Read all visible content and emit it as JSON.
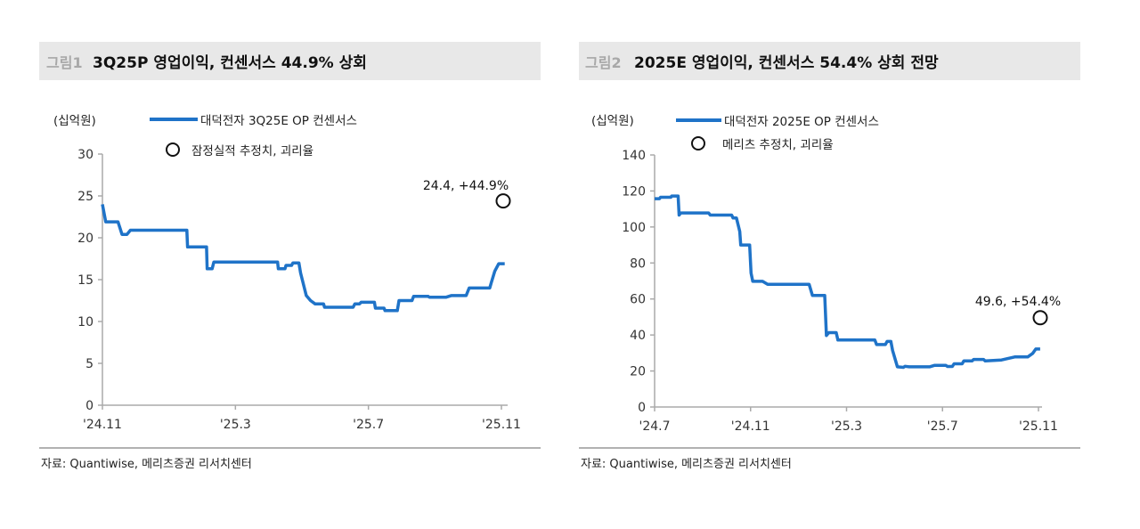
{
  "figures": [
    {
      "number": "그림1",
      "title": "3Q25P 영업이익, 컨센서스 44.9% 상회",
      "source": "자료: Quantiwise, 메리츠증권 리서치센터"
    },
    {
      "number": "그림2",
      "title": "2025E 영업이익, 컨센서스 54.4% 상회 전망",
      "source": "자료: Quantiwise, 메리츠증권 리서치센터"
    }
  ],
  "colors": {
    "line": "#1f73c8",
    "title_bg": "#e8e8e8",
    "axis": "#aaaaaa"
  },
  "chart_data": [
    {
      "type": "line",
      "title": "3Q25P 영업이익, 컨센서스 44.9% 상회",
      "ylabel": "(십억원)",
      "xlabel": "",
      "ylim": [
        0,
        30
      ],
      "yticks": [
        0,
        5,
        10,
        15,
        20,
        25,
        30
      ],
      "x_unit": "months since '24.11",
      "xlim": [
        0,
        12
      ],
      "xticks": [
        {
          "x": 0,
          "label": "'24.11"
        },
        {
          "x": 4,
          "label": "'25.3"
        },
        {
          "x": 8,
          "label": "'25.7"
        },
        {
          "x": 12,
          "label": "'25.11"
        }
      ],
      "series": [
        {
          "name": "대덕전자 3Q25E OP 컨센서스",
          "x": [
            0,
            0.1,
            0.47,
            0.59,
            0.74,
            0.84,
            2.54,
            2.56,
            3.13,
            3.15,
            3.3,
            3.35,
            5.27,
            5.29,
            5.49,
            5.52,
            5.69,
            5.73,
            5.91,
            5.96,
            6.13,
            6.26,
            6.4,
            6.65,
            6.68,
            7.54,
            7.59,
            7.73,
            7.78,
            8.18,
            8.21,
            8.47,
            8.5,
            8.87,
            8.92,
            9.31,
            9.36,
            9.8,
            9.83,
            10.34,
            10.49,
            10.94,
            11.03,
            11.65,
            11.7,
            11.8,
            11.92,
            12.1
          ],
          "values": [
            24.0,
            21.9,
            21.9,
            20.4,
            20.4,
            20.9,
            20.9,
            18.9,
            18.9,
            16.3,
            16.3,
            17.1,
            17.1,
            16.3,
            16.3,
            16.7,
            16.7,
            17.0,
            17.0,
            15.8,
            13.1,
            12.5,
            12.1,
            12.1,
            11.7,
            11.7,
            12.1,
            12.1,
            12.3,
            12.3,
            11.6,
            11.6,
            11.3,
            11.3,
            12.5,
            12.5,
            13.0,
            13.0,
            12.9,
            12.9,
            13.1,
            13.1,
            14.0,
            14.0,
            14.7,
            16.0,
            16.9,
            16.9
          ]
        }
      ],
      "marker": {
        "name": "잠정실적 추정치, 괴리율",
        "x": 12,
        "value": 24.4,
        "label": "24.4, +44.9%"
      }
    },
    {
      "type": "line",
      "title": "2025E 영업이익, 컨센서스 54.4% 상회 전망",
      "ylabel": "(십억원)",
      "xlabel": "",
      "ylim": [
        0,
        140
      ],
      "yticks": [
        0,
        20,
        40,
        60,
        80,
        100,
        120,
        140
      ],
      "x_unit": "months since '24.7",
      "xlim": [
        0,
        16
      ],
      "xticks": [
        {
          "x": 0,
          "label": "'24.7"
        },
        {
          "x": 4,
          "label": "'24.11"
        },
        {
          "x": 8,
          "label": "'25.3"
        },
        {
          "x": 12,
          "label": "'25.7"
        },
        {
          "x": 16,
          "label": "'25.11"
        }
      ],
      "series": [
        {
          "name": "대덕전자 2025E OP 컨센서스",
          "x": [
            0,
            0.2,
            0.25,
            0.68,
            0.71,
            0.98,
            1.02,
            1.09,
            2.25,
            2.32,
            3.21,
            3.27,
            3.41,
            3.55,
            3.59,
            3.96,
            4.02,
            4.09,
            4.5,
            4.71,
            6.44,
            6.58,
            7.09,
            7.16,
            7.26,
            7.57,
            7.64,
            9.18,
            9.25,
            9.62,
            9.69,
            9.85,
            9.92,
            10.12,
            10.37,
            10.44,
            10.61,
            11.46,
            11.66,
            12.14,
            12.21,
            12.41,
            12.48,
            12.82,
            12.89,
            13.23,
            13.3,
            13.71,
            13.78,
            14.46,
            15.01,
            15.55,
            15.76,
            15.89,
            16.07
          ],
          "values": [
            115.7,
            115.7,
            116.5,
            116.5,
            117.2,
            117.2,
            106.6,
            107.8,
            107.8,
            106.6,
            106.6,
            105,
            105,
            97.5,
            90,
            90,
            74.4,
            69.8,
            69.8,
            68.1,
            68.1,
            62,
            62,
            39.7,
            41.3,
            41.3,
            37.2,
            37.2,
            34.7,
            34.7,
            36.4,
            36.4,
            31.4,
            22.3,
            22,
            22.6,
            22.3,
            22.3,
            23.1,
            23.1,
            22.5,
            22.5,
            24,
            24,
            25.6,
            25.6,
            26.4,
            26.4,
            25.6,
            26.1,
            27.8,
            27.8,
            29.8,
            32.2,
            32.2
          ]
        }
      ],
      "marker": {
        "name": "메리츠 추정치, 괴리율",
        "x": 16,
        "value": 49.6,
        "label": "49.6, +54.4%"
      }
    }
  ]
}
